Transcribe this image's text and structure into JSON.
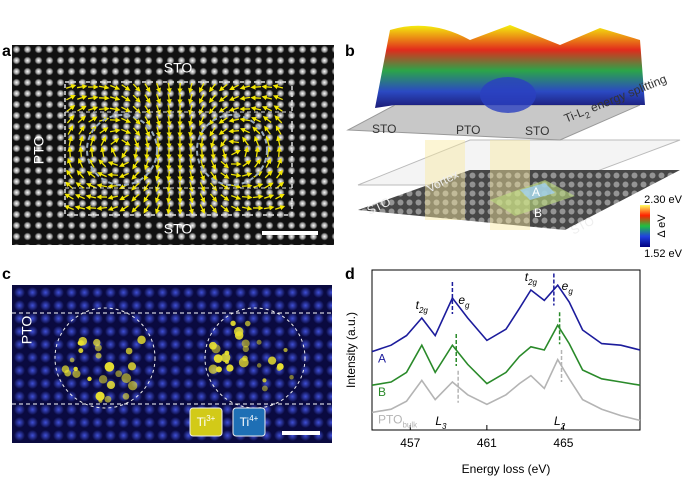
{
  "panels": {
    "a": {
      "label": "a",
      "top": "STO",
      "left": "PTO",
      "bottom": "STO"
    },
    "b": {
      "label": "b",
      "sto_left": "STO",
      "pto": "PTO",
      "sto_right": "STO",
      "axis_label": {
        "base": "Ti-L",
        "sub": "2",
        "rest": " energy splitting"
      },
      "vortex": "Vortex",
      "sto_bottom_left": "STO",
      "sto_bottom_right": "STO",
      "region_a": "A",
      "region_b": "B",
      "colorbar": {
        "max": "2.30 eV",
        "title": "Δ eV",
        "min": "1.52 eV"
      }
    },
    "c": {
      "label": "c",
      "left": "PTO",
      "ti3": {
        "base": "Ti",
        "sup": "3+"
      },
      "ti4": {
        "base": "Ti",
        "sup": "4+"
      }
    }
  },
  "chart_data": {
    "type": "line",
    "label": "d",
    "xlabel": "Energy loss (eV)",
    "ylabel": "Intensity (a.u.)",
    "x": [
      455,
      456,
      456.8,
      457.6,
      458.3,
      459.2,
      460,
      461,
      462,
      462.7,
      463.3,
      464,
      464.7,
      465.3,
      466,
      467,
      468,
      469
    ],
    "series": [
      {
        "name": "A",
        "color": "#1c1c9c",
        "marker_x": [
          459.2,
          464.5
        ],
        "values": [
          4.9,
          5.3,
          5.9,
          7.0,
          5.9,
          8.25,
          7.0,
          5.6,
          6.3,
          7.6,
          8.75,
          8.1,
          9.05,
          8.0,
          6.25,
          5.4,
          5.3,
          5.0
        ]
      },
      {
        "name": "B",
        "color": "#2a8a2a",
        "marker_x": [
          459.4,
          464.8
        ],
        "values": [
          2.8,
          3.0,
          3.6,
          5.3,
          3.6,
          5.3,
          4.1,
          2.9,
          3.6,
          4.6,
          5.2,
          5.0,
          6.55,
          5.4,
          3.75,
          3.2,
          3.0,
          2.8
        ]
      },
      {
        "name": "PTO",
        "name_sub": "bulk",
        "color": "#b4b4b4",
        "marker_x": [
          459.5,
          464.9
        ],
        "values": [
          1.1,
          1.3,
          1.8,
          3.1,
          1.9,
          3.0,
          2.2,
          1.6,
          2.2,
          2.9,
          3.4,
          2.6,
          4.4,
          3.2,
          1.9,
          1.3,
          0.9,
          0.6
        ]
      }
    ],
    "xlim": [
      455,
      469
    ],
    "xticks": [
      457,
      461,
      465
    ],
    "ylim": [
      0,
      10
    ],
    "annotations": [
      {
        "base": "t",
        "sub": "2g",
        "x": 457.6
      },
      {
        "base": "e",
        "sub": "g",
        "x": 459.8
      },
      {
        "base": "t",
        "sub": "2g",
        "x": 463.3
      },
      {
        "base": "e",
        "sub": "g",
        "x": 465.2
      },
      {
        "base": "L",
        "sub": "3",
        "x": 458.6
      },
      {
        "base": "L",
        "sub": "2",
        "x": 464.8
      }
    ]
  }
}
